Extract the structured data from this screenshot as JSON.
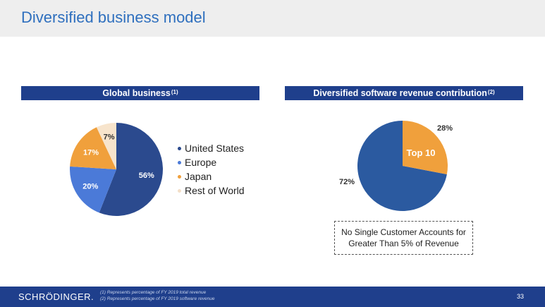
{
  "page": {
    "title": "Diversified business model",
    "colors": {
      "title": "#2e6fbe",
      "bar": "#1f3f8c"
    }
  },
  "left_section": {
    "heading": "Global business",
    "note_ref": "(1)"
  },
  "right_section": {
    "heading": "Diversified software revenue contribution",
    "note_ref": "(2)"
  },
  "callout": {
    "text": "No Single Customer Accounts for Greater Than 5% of Revenue"
  },
  "footer": {
    "logo": "SCHRÖDINGER.",
    "footnote1": "(1) Represents percentage of FY 2019 total revenue",
    "footnote2": "(2) Represents percentage of FY 2019 software revenue",
    "page_number": "33"
  },
  "chart_data": [
    {
      "type": "pie",
      "title": "Global business",
      "labels": [
        "United States",
        "Europe",
        "Japan",
        "Rest of World"
      ],
      "values": [
        56,
        20,
        17,
        7
      ],
      "value_labels": [
        "56%",
        "20%",
        "17%",
        "7%"
      ],
      "colors": [
        "#2b4a8e",
        "#4b7ad8",
        "#f0a03c",
        "#f7e4cc"
      ],
      "label_colors": [
        "#ffffff",
        "#ffffff",
        "#ffffff",
        "#333333"
      ],
      "legend_position": "right"
    },
    {
      "type": "pie",
      "title": "Diversified software revenue contribution",
      "labels": [
        "",
        "Top 10"
      ],
      "values": [
        72,
        28
      ],
      "value_labels": [
        "72%",
        "28%"
      ],
      "inner_label": "Top 10",
      "colors": [
        "#2b5aa0",
        "#f0a03c"
      ]
    }
  ]
}
